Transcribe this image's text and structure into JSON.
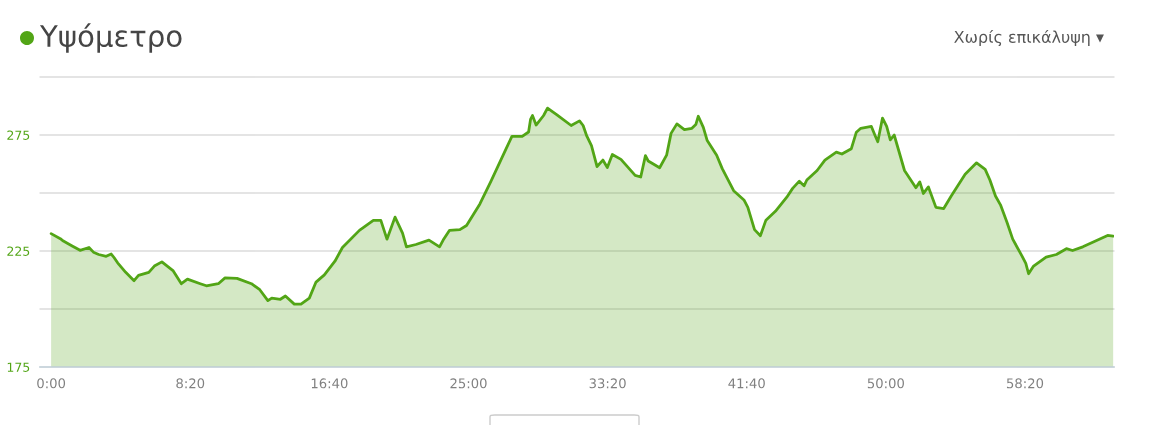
{
  "chart_data": {
    "type": "area",
    "title": "Υψόμετρο",
    "annotations": [
      "Χωρίς επικάλυψη ▾"
    ],
    "x": [
      0,
      33,
      44,
      74,
      104,
      136,
      152,
      171,
      198,
      216,
      226,
      239,
      268,
      298,
      314,
      351,
      371,
      398,
      439,
      468,
      490,
      536,
      558,
      601,
      625,
      668,
      720,
      750,
      779,
      793,
      824,
      842,
      874,
      898,
      928,
      952,
      982,
      1020,
      1047,
      1108,
      1158,
      1185,
      1207,
      1236,
      1263,
      1277,
      1311,
      1358,
      1396,
      1409,
      1432,
      1469,
      1493,
      1541,
      1581,
      1635,
      1656,
      1693,
      1716,
      1723,
      1730,
      1743,
      1770,
      1784,
      1818,
      1869,
      1899,
      1912,
      1925,
      1942,
      1962,
      1983,
      1999,
      2017,
      2048,
      2099,
      2119,
      2136,
      2146,
      2187,
      2212,
      2228,
      2249,
      2276,
      2303,
      2317,
      2326,
      2344,
      2358,
      2392,
      2412,
      2453,
      2490,
      2504,
      2528,
      2549,
      2569,
      2603,
      2644,
      2665,
      2689,
      2706,
      2716,
      2753,
      2781,
      2822,
      2842,
      2876,
      2894,
      2910,
      2948,
      2962,
      2971,
      2988,
      3003,
      3016,
      3030,
      3047,
      3067,
      3108,
      3122,
      3135,
      3153,
      3180,
      3208,
      3235,
      3285,
      3326,
      3357,
      3374,
      3394,
      3412,
      3435,
      3456,
      3490,
      3503,
      3513,
      3531,
      3576,
      3613,
      3649,
      3671,
      3708,
      3797,
      3817
    ],
    "series": [
      {
        "color": "#52a516",
        "values": [
          232.5,
          230.3,
          229.3,
          227.3,
          225.3,
          226.5,
          224.5,
          223.5,
          222.7,
          223.7,
          222.2,
          219.9,
          215.8,
          212.2,
          214.5,
          215.8,
          218.5,
          220.3,
          216.4,
          210.9,
          212.9,
          210.9,
          210,
          210.9,
          213.4,
          213.2,
          210.9,
          208.3,
          203.6,
          204.7,
          204.2,
          205.6,
          202.1,
          202.1,
          204.7,
          211.6,
          214.7,
          220.6,
          226.5,
          233.9,
          238.2,
          238.2,
          230.1,
          239.6,
          232.7,
          226.8,
          227.8,
          229.7,
          226.8,
          229.7,
          233.9,
          234.2,
          236,
          245.3,
          255.1,
          269,
          274.4,
          274.4,
          276.3,
          281.7,
          283.4,
          279.3,
          283.4,
          286.6,
          283.7,
          279.1,
          281.1,
          279.1,
          274.6,
          270.4,
          261.4,
          264.2,
          261,
          266.6,
          264.5,
          257.6,
          256.9,
          266.1,
          263.8,
          260.9,
          266.3,
          275.7,
          279.8,
          277.3,
          277.9,
          279.5,
          283.1,
          278.3,
          272.6,
          266.3,
          260.5,
          251,
          247,
          243.8,
          234.2,
          231.6,
          238.3,
          242.1,
          248.2,
          252,
          255.1,
          253.1,
          255.6,
          259.7,
          264.2,
          267.6,
          266.8,
          269.1,
          276.2,
          277.9,
          278.7,
          274.6,
          272.1,
          282.3,
          278.7,
          272.9,
          275,
          268,
          259.7,
          252.3,
          254.8,
          249.8,
          252.6,
          243.8,
          243.3,
          248.7,
          258.1,
          263,
          260.2,
          255.6,
          248.7,
          244.9,
          237.5,
          230.1,
          222.7,
          219.7,
          215.2,
          218.5,
          222.4,
          223.5,
          226,
          225.2,
          226.8,
          231.7,
          231.4
        ]
      }
    ],
    "xlim": [
      -40,
      3820
    ],
    "xticks": [
      {
        "value": 0,
        "label": "0:00"
      },
      {
        "value": 500,
        "label": "8:20"
      },
      {
        "value": 1000,
        "label": "16:40"
      },
      {
        "value": 1500,
        "label": "25:00"
      },
      {
        "value": 2000,
        "label": "33:20"
      },
      {
        "value": 2500,
        "label": "41:40"
      },
      {
        "value": 3000,
        "label": "50:00"
      },
      {
        "value": 3500,
        "label": "58:20"
      }
    ],
    "ylim": [
      175,
      300
    ],
    "yticks": [
      175,
      {
        "value": 200,
        "label": null
      },
      225,
      {
        "value": 250,
        "label": null
      },
      275,
      {
        "value": 300,
        "label": null
      }
    ],
    "grid": "y"
  }
}
